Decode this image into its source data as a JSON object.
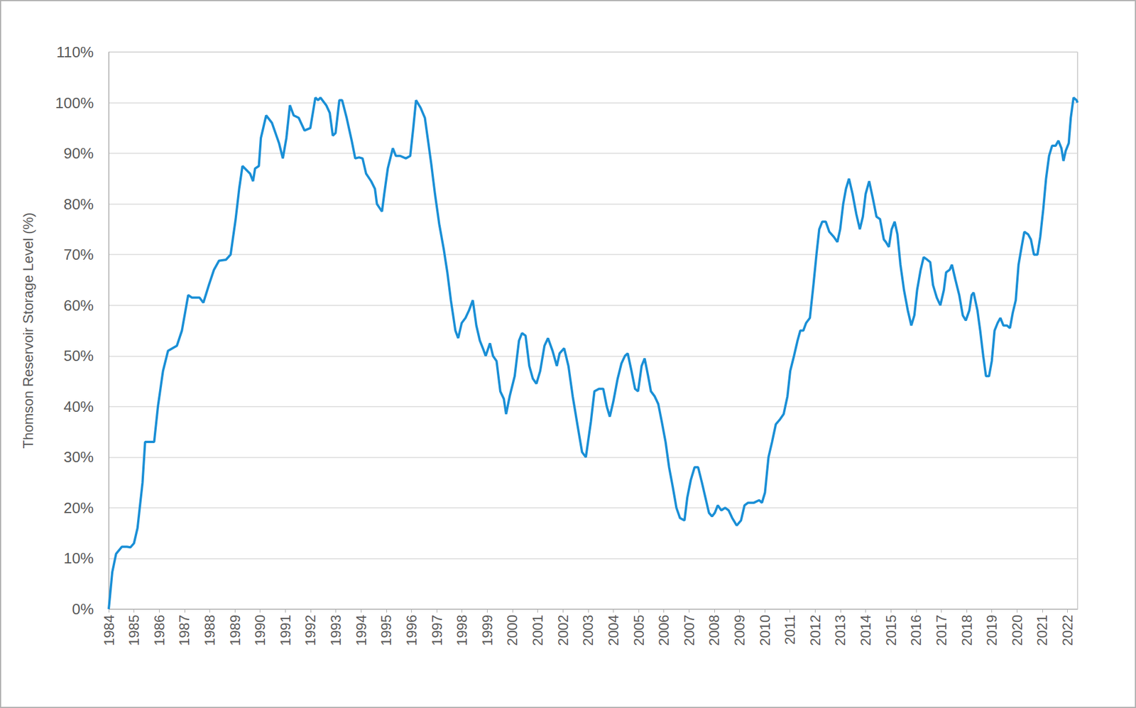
{
  "chart_data": {
    "type": "line",
    "ylabel": "Thomson Reservoir Storage Level (%)",
    "color": "#1a8fd6",
    "grid": true,
    "xlim": [
      1984,
      2022.4
    ],
    "xticks": [
      1984,
      1985,
      1986,
      1987,
      1988,
      1989,
      1990,
      1991,
      1992,
      1993,
      1994,
      1995,
      1996,
      1997,
      1998,
      1999,
      2000,
      2001,
      2002,
      2003,
      2004,
      2005,
      2006,
      2007,
      2008,
      2009,
      2010,
      2011,
      2012,
      2013,
      2014,
      2015,
      2016,
      2017,
      2018,
      2019,
      2020,
      2021,
      2022
    ],
    "ylim": [
      0,
      110
    ],
    "yticks": [
      {
        "value": 0,
        "label": "0%"
      },
      {
        "value": 10,
        "label": "10%"
      },
      {
        "value": 20,
        "label": "20%"
      },
      {
        "value": 30,
        "label": "30%"
      },
      {
        "value": 40,
        "label": "40%"
      },
      {
        "value": 50,
        "label": "50%"
      },
      {
        "value": 60,
        "label": "60%"
      },
      {
        "value": 70,
        "label": "70%"
      },
      {
        "value": 80,
        "label": "80%"
      },
      {
        "value": 90,
        "label": "90%"
      },
      {
        "value": 100,
        "label": "100%"
      },
      {
        "value": 110,
        "label": "110%"
      }
    ],
    "x": [
      1984.0,
      1984.14,
      1984.29,
      1984.52,
      1984.72,
      1984.86,
      1985.0,
      1985.14,
      1985.34,
      1985.44,
      1985.8,
      1985.95,
      1986.15,
      1986.35,
      1986.7,
      1986.9,
      1987.15,
      1987.3,
      1987.6,
      1987.75,
      1987.97,
      1988.17,
      1988.37,
      1988.65,
      1988.83,
      1989.03,
      1989.17,
      1989.3,
      1989.6,
      1989.72,
      1989.8,
      1989.95,
      1990.03,
      1990.24,
      1990.47,
      1990.75,
      1990.9,
      1991.04,
      1991.18,
      1991.33,
      1991.53,
      1991.76,
      1991.99,
      1992.19,
      1992.3,
      1992.39,
      1992.62,
      1992.76,
      1992.88,
      1992.99,
      1993.14,
      1993.25,
      1993.43,
      1993.63,
      1993.77,
      1993.92,
      1994.06,
      1994.2,
      1994.4,
      1994.55,
      1994.63,
      1994.83,
      1994.92,
      1995.06,
      1995.26,
      1995.38,
      1995.55,
      1995.78,
      1995.95,
      1996.07,
      1996.18,
      1996.36,
      1996.53,
      1996.67,
      1996.78,
      1996.93,
      1997.1,
      1997.28,
      1997.42,
      1997.56,
      1997.74,
      1997.85,
      1997.99,
      1998.14,
      1998.28,
      1998.43,
      1998.57,
      1998.71,
      1998.83,
      1998.94,
      1999.11,
      1999.23,
      1999.37,
      1999.52,
      1999.66,
      1999.75,
      1999.89,
      2000.09,
      2000.26,
      2000.38,
      2000.52,
      2000.67,
      2000.81,
      2000.95,
      2001.1,
      2001.27,
      2001.41,
      2001.59,
      2001.76,
      2001.87,
      2002.05,
      2002.22,
      2002.39,
      2002.59,
      2002.76,
      2002.91,
      2003.11,
      2003.25,
      2003.43,
      2003.6,
      2003.74,
      2003.86,
      2004.0,
      2004.17,
      2004.32,
      2004.46,
      2004.57,
      2004.72,
      2004.86,
      2004.98,
      2005.12,
      2005.24,
      2005.38,
      2005.49,
      2005.64,
      2005.78,
      2005.92,
      2006.07,
      2006.21,
      2006.36,
      2006.5,
      2006.64,
      2006.82,
      2006.93,
      2007.07,
      2007.22,
      2007.36,
      2007.51,
      2007.65,
      2007.79,
      2007.91,
      2008.02,
      2008.14,
      2008.28,
      2008.43,
      2008.57,
      2008.71,
      2008.89,
      2009.06,
      2009.2,
      2009.34,
      2009.57,
      2009.78,
      2009.89,
      2010.01,
      2010.09,
      2010.15,
      2010.29,
      2010.44,
      2010.61,
      2010.75,
      2010.9,
      2011.01,
      2011.16,
      2011.3,
      2011.41,
      2011.53,
      2011.64,
      2011.79,
      2011.93,
      2012.05,
      2012.16,
      2012.28,
      2012.42,
      2012.56,
      2012.74,
      2012.88,
      2012.99,
      2013.11,
      2013.22,
      2013.34,
      2013.48,
      2013.63,
      2013.77,
      2013.89,
      2014.0,
      2014.14,
      2014.29,
      2014.43,
      2014.57,
      2014.72,
      2014.8,
      2014.92,
      2015.03,
      2015.15,
      2015.26,
      2015.38,
      2015.52,
      2015.67,
      2015.81,
      2015.93,
      2016.04,
      2016.18,
      2016.3,
      2016.44,
      2016.56,
      2016.67,
      2016.82,
      2016.96,
      2017.1,
      2017.19,
      2017.33,
      2017.42,
      2017.56,
      2017.71,
      2017.85,
      2017.97,
      2018.11,
      2018.2,
      2018.28,
      2018.43,
      2018.54,
      2018.66,
      2018.77,
      2018.89,
      2019.0,
      2019.11,
      2019.23,
      2019.34,
      2019.46,
      2019.6,
      2019.72,
      2019.83,
      2019.95,
      2020.06,
      2020.18,
      2020.29,
      2020.44,
      2020.55,
      2020.67,
      2020.81,
      2020.92,
      2021.04,
      2021.15,
      2021.27,
      2021.39,
      2021.53,
      2021.64,
      2021.76,
      2021.84,
      2021.93,
      2022.05,
      2022.13,
      2022.24,
      2022.36,
      2022.4
    ],
    "values": [
      0,
      7.3,
      10.9,
      12.3,
      12.3,
      12.2,
      13,
      16,
      25,
      33,
      33,
      40,
      47,
      51,
      52,
      55,
      62,
      61.5,
      61.5,
      60.5,
      64,
      67,
      68.8,
      69,
      70,
      77,
      83,
      87.5,
      86,
      84.5,
      87,
      87.5,
      93,
      97.5,
      96,
      92,
      89,
      93,
      99.5,
      97.5,
      97,
      94.5,
      95,
      101,
      100.5,
      101,
      99.5,
      98,
      93.5,
      94,
      100.5,
      100.5,
      97,
      92.5,
      89,
      89.2,
      89,
      86,
      84.5,
      83,
      80,
      78.5,
      82,
      87,
      91,
      89.5,
      89.5,
      89,
      89.5,
      95,
      100.5,
      99,
      97,
      92,
      88,
      82,
      76,
      71,
      66.5,
      61,
      55,
      53.5,
      56.5,
      57.5,
      59,
      61,
      56,
      53,
      51.5,
      50,
      52.5,
      50,
      49,
      43,
      41.5,
      38.5,
      42,
      46,
      53,
      54.5,
      54,
      48,
      45.5,
      44.5,
      47,
      52,
      53.5,
      51,
      48,
      50.5,
      51.5,
      48,
      42,
      36,
      31,
      30,
      37,
      43,
      43.5,
      43.5,
      40,
      38,
      41,
      45.5,
      48.5,
      50,
      50.5,
      47,
      43.5,
      43,
      48,
      49.5,
      46,
      43,
      42,
      40.5,
      37,
      33,
      28,
      24,
      20,
      18,
      17.5,
      22,
      25.5,
      28,
      28,
      25,
      22,
      19,
      18.3,
      19,
      20.5,
      19.5,
      20,
      19.5,
      18,
      16.5,
      17.5,
      20.5,
      21,
      21,
      21.5,
      21,
      23,
      27,
      30,
      33,
      36.5,
      37.5,
      38.5,
      42,
      47,
      50,
      53,
      55,
      55,
      56.5,
      57.5,
      64,
      70,
      75,
      76.5,
      76.5,
      74.5,
      73.5,
      72.5,
      75,
      80,
      83,
      85,
      82,
      78,
      75,
      77.5,
      82,
      84.5,
      81,
      77.5,
      77,
      73,
      72.5,
      71.5,
      75,
      76.5,
      74,
      68,
      63,
      59,
      56,
      58,
      63,
      67,
      69.5,
      69,
      68.5,
      64,
      61.5,
      60,
      63,
      66.5,
      67,
      68,
      65,
      62,
      58,
      57,
      59,
      62,
      62.5,
      59,
      55,
      50,
      46,
      46,
      49,
      55,
      56.5,
      57.5,
      56,
      56,
      55.5,
      58.5,
      61,
      68,
      71.5,
      74.5,
      74,
      73,
      70,
      70,
      73.5,
      79,
      85,
      89.5,
      91.5,
      91.5,
      92.5,
      91,
      88.5,
      90.5,
      92,
      97,
      101,
      100.5,
      100
    ]
  }
}
